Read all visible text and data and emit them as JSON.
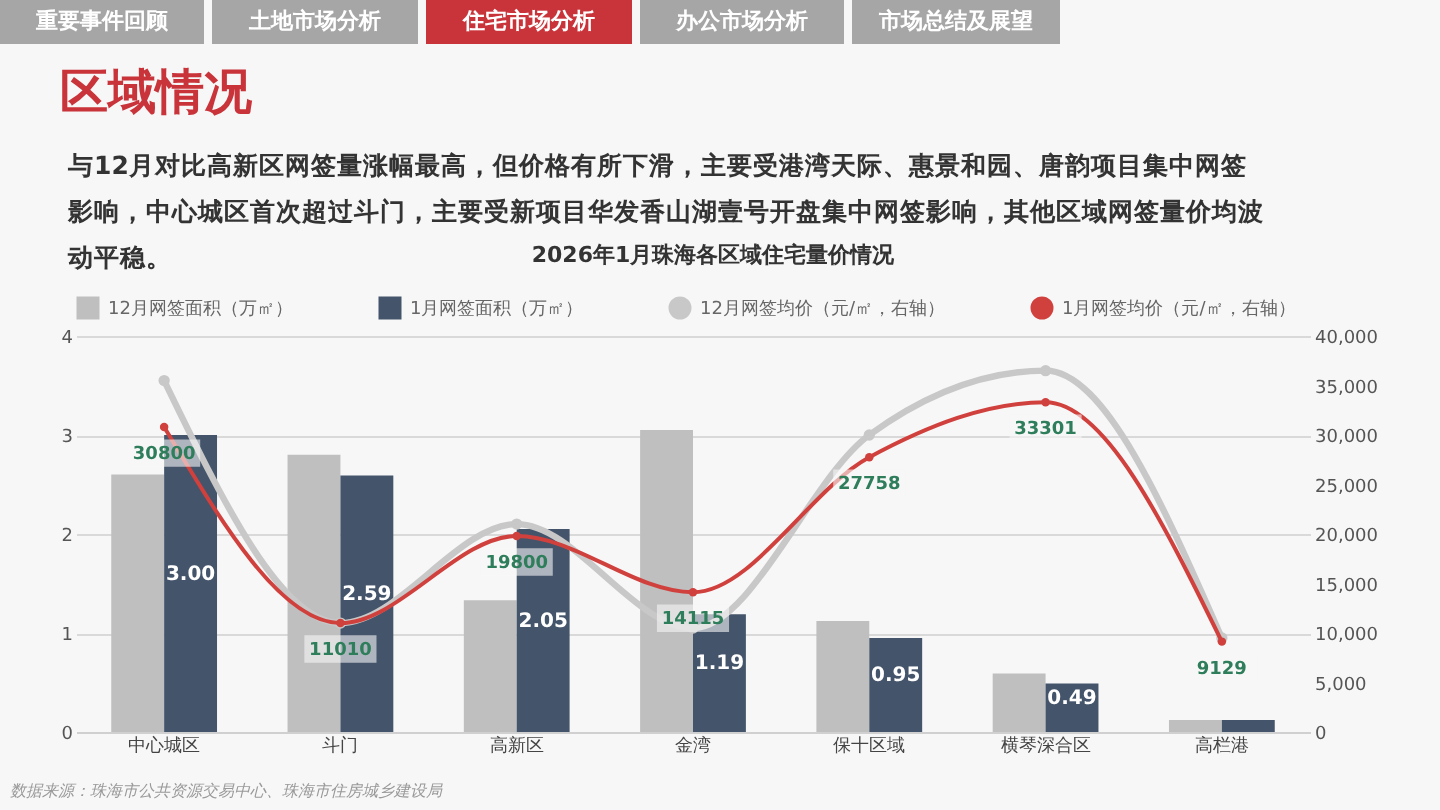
{
  "chart_data": {
    "type": "bar",
    "title": "2026年1月珠海各区域住宅量价情况",
    "annotations": [
      "重要事件回顾",
      "土地市场分析",
      "住宅市场分析",
      "办公市场分析",
      "市场总结及展望",
      "区域情况",
      "与12月对比高新区网签量涨幅最高，但价格有所下滑，主要受港湾天际、惠景和园、唐韵项目集中网签影响，中心城区首次超过斗门，主要受新项目华发香山湖壹号开盘集中网签影响，其他区域网签量价均波动平稳。",
      "数据来源：珠海市公共资源交易中心、珠海市住房城乡建设局"
    ],
    "categories": [
      "中心城区",
      "斗门",
      "高新区",
      "金湾",
      "保十区域",
      "横琴深合区",
      "高栏港"
    ],
    "series": [
      {
        "name": "12月网签面积（万㎡）",
        "color": "#bfbfbf",
        "values": [
          2.6,
          2.8,
          1.33,
          3.05,
          1.12,
          0.59,
          0.12
        ]
      },
      {
        "name": "1月网签面积（万㎡）",
        "color": "#44546a",
        "values": [
          3.0,
          2.59,
          2.05,
          1.19,
          0.95,
          0.49,
          0.12
        ],
        "value_labels": [
          "3.00",
          "2.59",
          "2.05",
          "1.19",
          "0.95",
          "0.49",
          null
        ]
      },
      {
        "name": "12月网签均价（元/㎡，右轴）",
        "type": "line",
        "axis": "y2",
        "color": "#c8c8c8",
        "values": [
          35500,
          11000,
          21000,
          10500,
          30000,
          36500,
          9500
        ]
      },
      {
        "name": "1月网签均价（元/㎡，右轴）",
        "type": "line",
        "axis": "y2",
        "color": "#d0413e",
        "values": [
          30800,
          11010,
          19800,
          14115,
          27758,
          33301,
          9129
        ],
        "value_labels": [
          "30800",
          "11010",
          "19800",
          "14115",
          "27758",
          "33301",
          "9129"
        ]
      }
    ],
    "ylim": [
      0,
      4
    ],
    "yticks": [
      0,
      1,
      2,
      3,
      4
    ],
    "y2lim": [
      0,
      40000
    ],
    "y2ticks": [
      {
        "value": 0,
        "label": "0"
      },
      {
        "value": 5000,
        "label": "5,000"
      },
      {
        "value": 10000,
        "label": "10,000"
      },
      {
        "value": 15000,
        "label": "15,000"
      },
      {
        "value": 20000,
        "label": "20,000"
      },
      {
        "value": 25000,
        "label": "25,000"
      },
      {
        "value": 30000,
        "label": "30,000"
      },
      {
        "value": 35000,
        "label": "35,000"
      },
      {
        "value": 40000,
        "label": "40,000"
      }
    ],
    "grid": "y",
    "legend": "top",
    "marker": "circle",
    "line_style": "solid"
  }
}
